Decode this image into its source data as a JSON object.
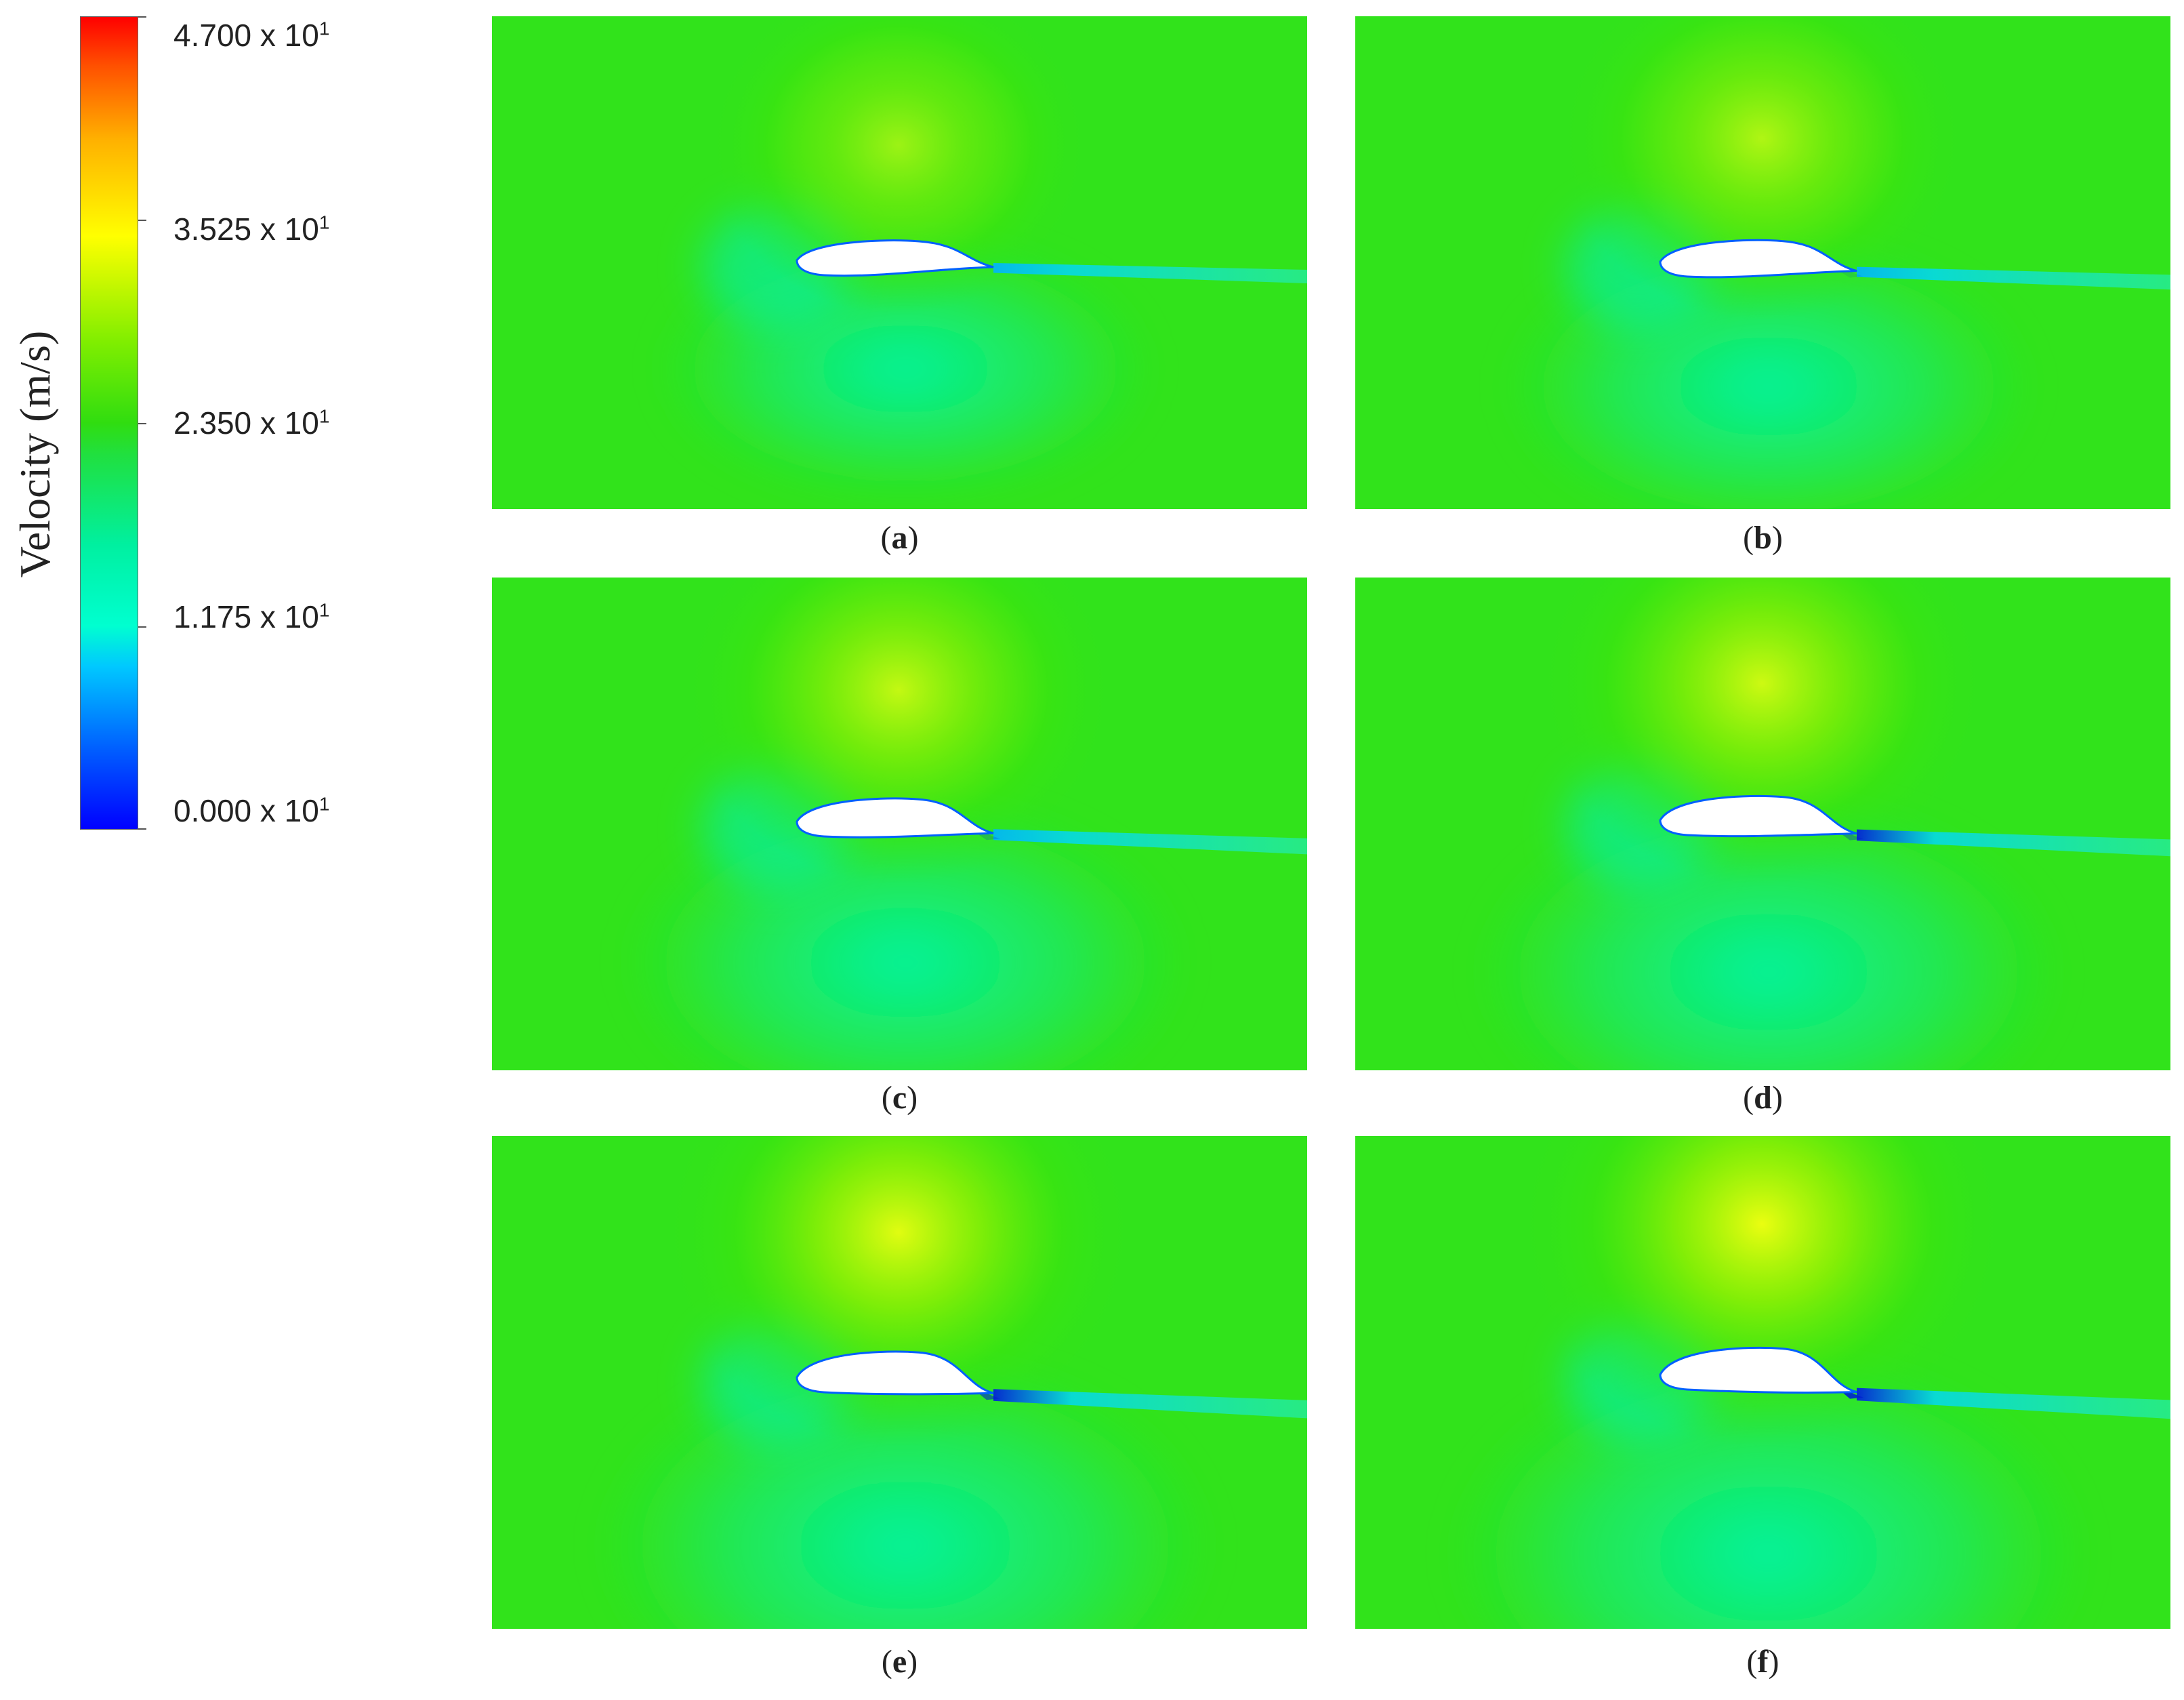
{
  "legend": {
    "title": "Velocity (m/s)",
    "ticks": [
      {
        "mantissa": "4.700 x 10",
        "exp": "1"
      },
      {
        "mantissa": "3.525 x 10",
        "exp": "1"
      },
      {
        "mantissa": "2.350 x 10",
        "exp": "1"
      },
      {
        "mantissa": "1.175 x 10",
        "exp": "1"
      },
      {
        "mantissa": "0.000 x 10",
        "exp": "1"
      }
    ]
  },
  "panels": [
    {
      "letter": "a"
    },
    {
      "letter": "b"
    },
    {
      "letter": "c"
    },
    {
      "letter": "d"
    },
    {
      "letter": "e"
    },
    {
      "letter": "f"
    }
  ]
}
